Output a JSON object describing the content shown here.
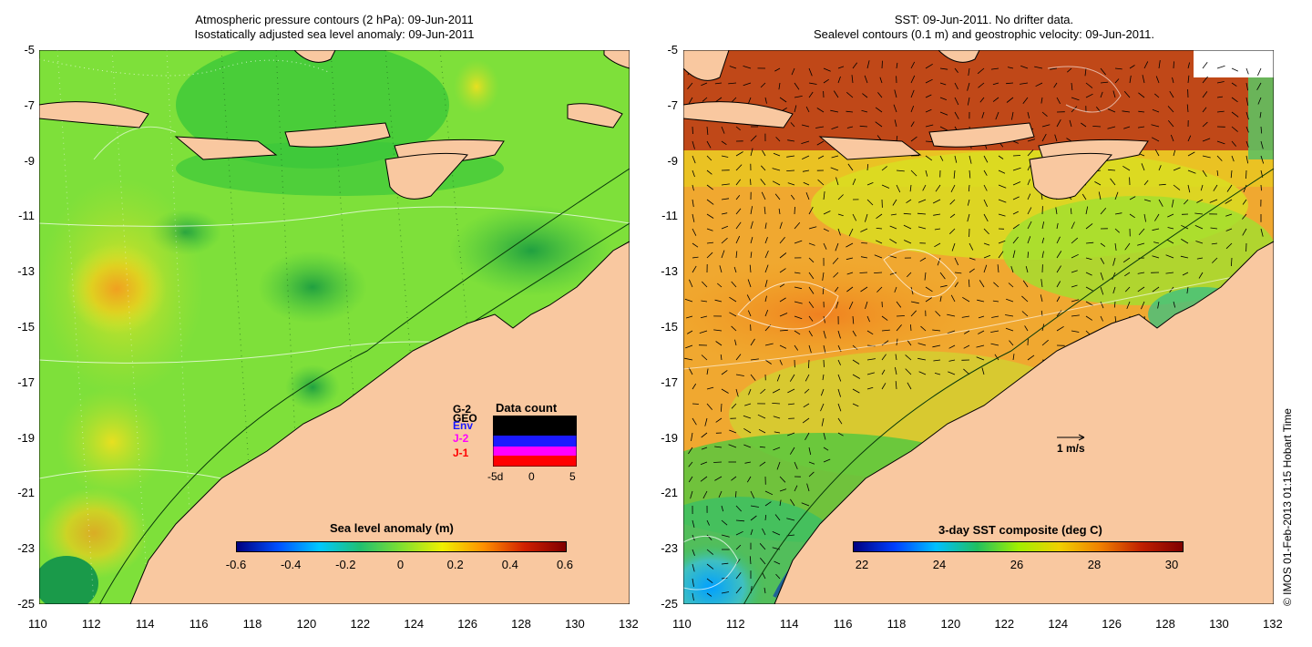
{
  "left_panel": {
    "title_line1": "Atmospheric pressure contours (2 hPa): 09-Jun-2011",
    "title_line2": "Isostatically adjusted sea level anomaly: 09-Jun-2011",
    "colorbar": {
      "title": "Sea level anomaly (m)",
      "labels": [
        "-0.6",
        "-0.4",
        "-0.2",
        "0",
        "0.2",
        "0.4",
        "0.6"
      ]
    },
    "data_count_inset": {
      "title": "Data count",
      "series_labels": [
        "G-2",
        "GEO",
        "Env",
        "J-2",
        "J-1"
      ],
      "series_colors": [
        "#000000",
        "#000000",
        "#1a1aff",
        "#ff00ff",
        "#ff0000"
      ],
      "x_ticks": [
        "-5d",
        "0",
        "5"
      ]
    }
  },
  "right_panel": {
    "title_line1": "SST: 09-Jun-2011. No drifter data.",
    "title_line2": "Sealevel contours (0.1 m) and geostrophic velocity: 09-Jun-2011.",
    "colorbar": {
      "title": "3-day SST composite (deg C)",
      "labels": [
        "22",
        "24",
        "26",
        "28",
        "30"
      ]
    },
    "velocity_scale_label": "1 m/s"
  },
  "axes": {
    "x_ticks": [
      "110",
      "112",
      "114",
      "116",
      "118",
      "120",
      "122",
      "124",
      "126",
      "128",
      "130",
      "132"
    ],
    "y_ticks": [
      "-5",
      "-7",
      "-9",
      "-11",
      "-13",
      "-15",
      "-17",
      "-19",
      "-21",
      "-23",
      "-25"
    ]
  },
  "credit": "© IMOS 01-Feb-2013 01:15 Hobart Time",
  "colors": {
    "land": "#f9c8a0",
    "sla_scale": [
      "#00007f",
      "#0060ff",
      "#00d0ff",
      "#20c060",
      "#80ff00",
      "#f0f000",
      "#ff8000",
      "#c00000",
      "#7f0000"
    ],
    "sst_scale": [
      "#00007f",
      "#0040ff",
      "#00c0ff",
      "#20c060",
      "#a0f000",
      "#f0d000",
      "#f08000",
      "#c02000",
      "#7f0000"
    ]
  }
}
